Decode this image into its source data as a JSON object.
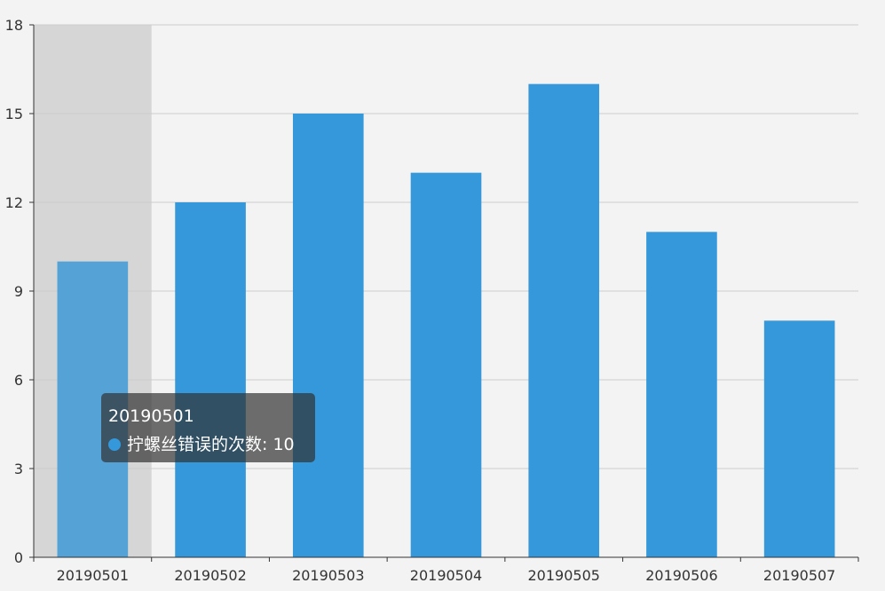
{
  "chart_data": {
    "type": "bar",
    "categories": [
      "20190501",
      "20190502",
      "20190503",
      "20190504",
      "20190505",
      "20190506",
      "20190507"
    ],
    "series": [
      {
        "name": "拧螺丝错误的次数",
        "values": [
          10,
          12,
          15,
          13,
          16,
          11,
          8
        ]
      }
    ],
    "y_ticks": [
      0,
      3,
      6,
      9,
      12,
      15,
      18
    ],
    "ylim": [
      0,
      18
    ],
    "grid": true,
    "highlighted_category_index": 0
  },
  "tooltip": {
    "title": "20190501",
    "series_name": "拧螺丝错误的次数",
    "value": "10",
    "separator": ": "
  },
  "colors": {
    "bar": "#3498db",
    "bar_highlight": "#54a2d6",
    "axis_pointer_shadow": "#d6d6d6",
    "grid_line": "#cccccc",
    "axis_line": "#333333",
    "tooltip_dot": "#3498db"
  }
}
